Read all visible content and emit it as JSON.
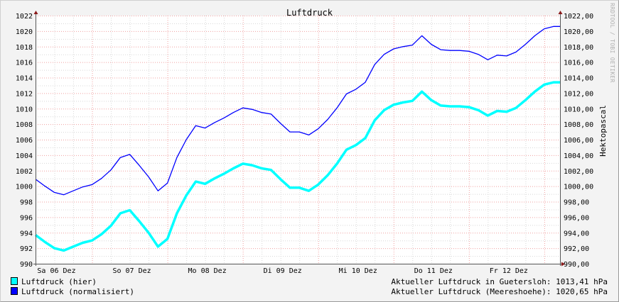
{
  "chart_data": {
    "type": "line",
    "title": "Luftdruck",
    "ylabel": "Hektopascal",
    "watermark": "RRDTOOL / TOBI OETIKER",
    "ylim": [
      990,
      1022
    ],
    "xlim": [
      "06.12. 06:00",
      "13.12. 05:00"
    ],
    "grid": true,
    "legend_placement": "bottom-left",
    "y_ticks_left": [
      "990",
      "992",
      "994",
      "996",
      "998",
      "1000",
      "1002",
      "1004",
      "1006",
      "1008",
      "1010",
      "1012",
      "1014",
      "1016",
      "1018",
      "1020",
      "1022"
    ],
    "y_ticks_right": [
      "990,00",
      "992,00",
      "994,00",
      "996,00",
      "998,00",
      "1000,00",
      "1002,00",
      "1004,00",
      "1006,00",
      "1008,00",
      "1010,00",
      "1012,00",
      "1014,00",
      "1016,00",
      "1018,00",
      "1020,00",
      "1022,00"
    ],
    "x_ticks": [
      {
        "label": "Sa 06 Dez",
        "at": "06.12. 12:00"
      },
      {
        "label": "So 07 Dez",
        "at": "07.12. 12:00"
      },
      {
        "label": "Mo 08 Dez",
        "at": "08.12. 12:00"
      },
      {
        "label": "Di 09 Dez",
        "at": "09.12. 12:00"
      },
      {
        "label": "Mi 10 Dez",
        "at": "10.12. 12:00"
      },
      {
        "label": "Do 11 Dez",
        "at": "11.12. 12:00"
      },
      {
        "label": "Fr 12 Dez",
        "at": "12.12. 12:00"
      }
    ],
    "x": [
      "06.12. 06:00",
      "06.12. 09:00",
      "06.12. 12:00",
      "06.12. 15:00",
      "06.12. 18:00",
      "06.12. 21:00",
      "07.12. 00:00",
      "07.12. 03:00",
      "07.12. 06:00",
      "07.12. 09:00",
      "07.12. 12:00",
      "07.12. 15:00",
      "07.12. 18:00",
      "07.12. 21:00",
      "08.12. 00:00",
      "08.12. 03:00",
      "08.12. 06:00",
      "08.12. 09:00",
      "08.12. 12:00",
      "08.12. 15:00",
      "08.12. 18:00",
      "08.12. 21:00",
      "09.12. 00:00",
      "09.12. 03:00",
      "09.12. 06:00",
      "09.12. 09:00",
      "09.12. 12:00",
      "09.12. 15:00",
      "09.12. 18:00",
      "09.12. 21:00",
      "10.12. 00:00",
      "10.12. 03:00",
      "10.12. 06:00",
      "10.12. 09:00",
      "10.12. 12:00",
      "10.12. 15:00",
      "10.12. 18:00",
      "10.12. 21:00",
      "11.12. 00:00",
      "11.12. 03:00",
      "11.12. 06:00",
      "11.12. 09:00",
      "11.12. 12:00",
      "11.12. 15:00",
      "11.12. 18:00",
      "11.12. 21:00",
      "12.12. 00:00",
      "12.12. 03:00",
      "12.12. 06:00",
      "12.12. 09:00",
      "12.12. 12:00",
      "12.12. 15:00",
      "12.12. 18:00",
      "12.12. 21:00",
      "13.12. 00:00",
      "13.12. 03:00",
      "13.12. 05:00"
    ],
    "series": [
      {
        "name": "Luftdruck (hier)",
        "color": "#00ffff",
        "values": [
          993.7,
          992.8,
          992.0,
          991.7,
          992.2,
          992.7,
          993.0,
          993.8,
          994.9,
          996.5,
          996.9,
          995.5,
          994.0,
          992.2,
          993.2,
          996.5,
          998.8,
          1000.6,
          1000.3,
          1001.0,
          1001.6,
          1002.3,
          1002.9,
          1002.7,
          1002.3,
          1002.1,
          1000.9,
          999.8,
          999.8,
          999.4,
          1000.2,
          1001.4,
          1002.9,
          1004.7,
          1005.3,
          1006.2,
          1008.5,
          1009.8,
          1010.5,
          1010.8,
          1011.0,
          1012.2,
          1011.1,
          1010.4,
          1010.3,
          1010.3,
          1010.2,
          1009.8,
          1009.1,
          1009.7,
          1009.6,
          1010.1,
          1011.1,
          1012.2,
          1013.1,
          1013.4,
          1013.4
        ]
      },
      {
        "name": "Luftdruck (normalisiert)",
        "color": "#0000ff",
        "values": [
          1000.9,
          1000.0,
          999.2,
          998.9,
          999.4,
          999.9,
          1000.2,
          1001.0,
          1002.1,
          1003.7,
          1004.1,
          1002.7,
          1001.2,
          999.4,
          1000.4,
          1003.7,
          1006.0,
          1007.8,
          1007.5,
          1008.2,
          1008.8,
          1009.5,
          1010.1,
          1009.9,
          1009.5,
          1009.3,
          1008.1,
          1007.0,
          1007.0,
          1006.6,
          1007.4,
          1008.6,
          1010.1,
          1011.9,
          1012.5,
          1013.4,
          1015.7,
          1017.0,
          1017.7,
          1018.0,
          1018.2,
          1019.4,
          1018.3,
          1017.6,
          1017.5,
          1017.5,
          1017.4,
          1017.0,
          1016.3,
          1016.9,
          1016.8,
          1017.3,
          1018.3,
          1019.4,
          1020.3,
          1020.6,
          1020.6
        ]
      }
    ]
  },
  "legend": {
    "items": [
      {
        "label": "Luftdruck (hier)",
        "color": "#00ffff"
      },
      {
        "label": "Luftdruck (normalisiert)",
        "color": "#0000ff"
      }
    ],
    "current_local": "Aktueller Luftdruck in Guetersloh: 1013,41 hPa",
    "current_sea": "Aktueller Luftdruck (Meereshoehe): 1020,65 hPa"
  }
}
